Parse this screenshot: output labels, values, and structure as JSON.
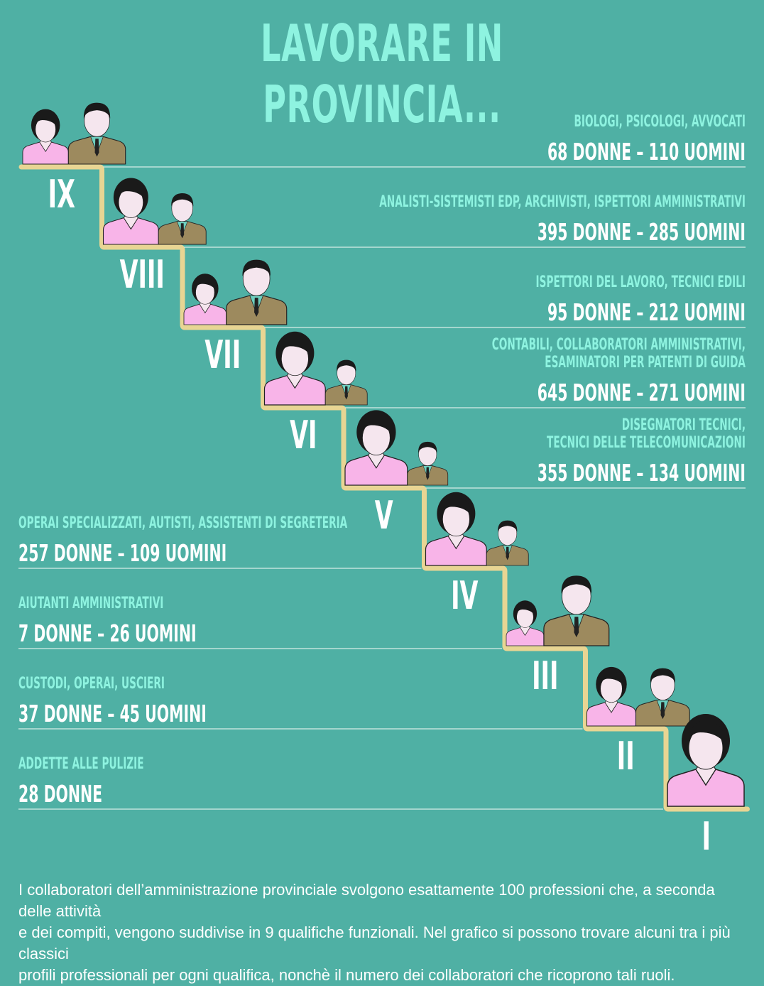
{
  "title": "LAVORARE IN PROVINCIA...",
  "colors": {
    "background": "#4fb0a4",
    "title": "#8ef3e0",
    "role_text": "#8ef3e0",
    "count_text": "#ffffff",
    "stair": "#e8d593",
    "woman_shirt": "#f8b4e8",
    "man_suit": "#9d8a5e",
    "hair": "#1a1a1a",
    "skin": "#f5e6ee"
  },
  "levels": [
    {
      "numeral": "IX",
      "roles": [
        "BIOLOGI, PSICOLOGI, AVVOCATI"
      ],
      "counts": "68 DONNE – 110 UOMINI",
      "side": "right",
      "woman_level": 0.38,
      "man_level": 0.62
    },
    {
      "numeral": "VIII",
      "roles": [
        "ANALISTI-SISTEMISTI EDP, ARCHIVISTI, ISPETTORI AMMINISTRATIVI"
      ],
      "counts": "395 DONNE – 285 UOMINI",
      "side": "right",
      "woman_level": 0.58,
      "man_level": 0.42
    },
    {
      "numeral": "VII",
      "roles": [
        "ISPETTORI DEL LAVORO, TECNICI EDILI"
      ],
      "counts": "95 DONNE – 212 UOMINI",
      "side": "right",
      "woman_level": 0.31,
      "man_level": 0.69
    },
    {
      "numeral": "VI",
      "roles": [
        "CONTABILI, COLLABORATORI AMMINISTRATIVI,",
        "ESAMINATORI PER PATENTI DI GUIDA"
      ],
      "counts": "645 DONNE – 271 UOMINI",
      "side": "right",
      "woman_level": 0.7,
      "man_level": 0.3
    },
    {
      "numeral": "V",
      "roles": [
        "DISEGNATORI TECNICI,",
        "TECNICI DELLE TELECOMUNICAZIONI"
      ],
      "counts": "355 DONNE – 134 UOMINI",
      "side": "right",
      "woman_level": 0.73,
      "man_level": 0.27
    },
    {
      "numeral": "IV",
      "roles": [
        "OPERAI SPECIALIZZATI, AUTISTI, ASSISTENTI DI SEGRETERIA"
      ],
      "counts": "257 DONNE – 109 UOMINI",
      "side": "left",
      "woman_level": 0.7,
      "man_level": 0.3
    },
    {
      "numeral": "III",
      "roles": [
        "AIUTANTI AMMINISTRATIVI"
      ],
      "counts": "7 DONNE – 26 UOMINI",
      "side": "left",
      "woman_level": 0.21,
      "man_level": 0.79
    },
    {
      "numeral": "II",
      "roles": [
        "CUSTODI, OPERAI, USCIERI"
      ],
      "counts": "37 DONNE – 45 UOMINI",
      "side": "left",
      "woman_level": 0.45,
      "man_level": 0.55
    },
    {
      "numeral": "I",
      "roles": [
        "ADDETTE ALLE PULIZIE"
      ],
      "counts": "28 DONNE",
      "side": "left",
      "woman_level": 1.0,
      "man_level": 0.0
    }
  ],
  "footer": [
    "I collaboratori dell’amministrazione provinciale svolgono esattamente 100 professioni che, a seconda delle attività",
    "e dei compiti, vengono suddivise in 9 qualifiche funzionali. Nel grafico si possono trovare alcuni tra i più classici",
    "profili professionali per ogni qualifica, nonchè il numero dei collaboratori che ricoprono tali ruoli."
  ]
}
